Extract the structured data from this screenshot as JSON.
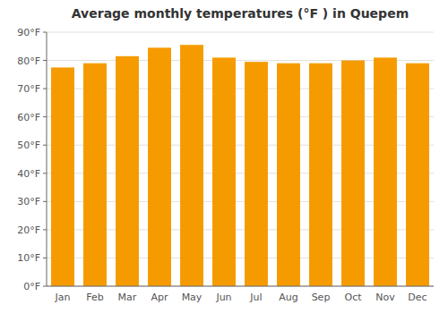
{
  "chart_data": {
    "type": "bar",
    "title": "Average monthly temperatures (°F ) in Quepem",
    "categories": [
      "Jan",
      "Feb",
      "Mar",
      "Apr",
      "May",
      "Jun",
      "Jul",
      "Aug",
      "Sep",
      "Oct",
      "Nov",
      "Dec"
    ],
    "values": [
      77.5,
      79.0,
      81.5,
      84.5,
      85.5,
      81.0,
      79.5,
      79.0,
      79.0,
      80.0,
      81.0,
      79.0
    ],
    "color": "#F59B00",
    "ylim": [
      0,
      90
    ],
    "yticks": [
      {
        "value": 0,
        "label": "0°F"
      },
      {
        "value": 10,
        "label": "10°F"
      },
      {
        "value": 20,
        "label": "20°F"
      },
      {
        "value": 30,
        "label": "30°F"
      },
      {
        "value": 40,
        "label": "40°F"
      },
      {
        "value": 50,
        "label": "50°F"
      },
      {
        "value": 60,
        "label": "60°F"
      },
      {
        "value": 70,
        "label": "70°F"
      },
      {
        "value": 80,
        "label": "80°F"
      },
      {
        "value": 90,
        "label": "90°F"
      }
    ],
    "grid": true
  }
}
